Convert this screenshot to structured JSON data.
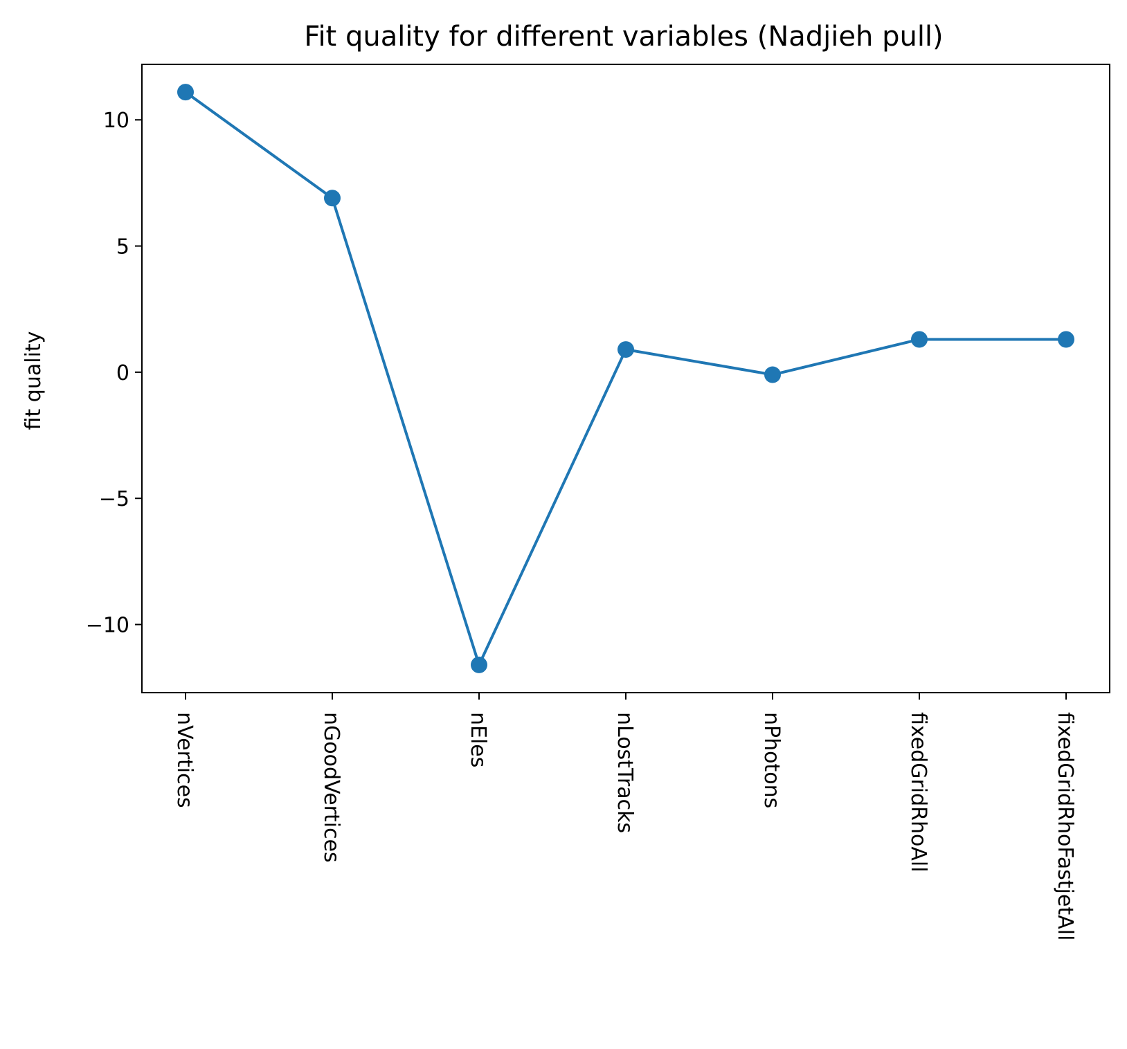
{
  "chart_data": {
    "type": "line",
    "title": "Fit quality for different variables (Nadjieh pull)",
    "xlabel": "",
    "ylabel": "fit quality",
    "categories": [
      "nVertices",
      "nGoodVertices",
      "nEles",
      "nLostTracks",
      "nPhotons",
      "fixedGridRhoAll",
      "fixedGridRhoFastjetAll"
    ],
    "series": [
      {
        "values": [
          11.1,
          6.9,
          -11.6,
          0.9,
          -0.1,
          1.3,
          1.3
        ]
      }
    ],
    "yticks": [
      -10,
      -5,
      0,
      5,
      10
    ],
    "ytick_labels": [
      "−10",
      "−5",
      "0",
      "5",
      "10"
    ],
    "ylim": [
      -12.7,
      12.2
    ],
    "grid": false,
    "legend": "none",
    "colors": {
      "series": "#1f77b4",
      "axes": "#000000"
    }
  }
}
